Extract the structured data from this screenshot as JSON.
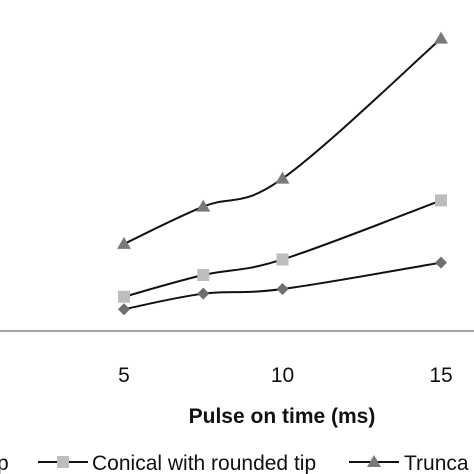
{
  "chart_data": {
    "type": "line",
    "x": [
      5,
      7.5,
      10,
      15
    ],
    "xticks": [
      "5",
      "10",
      "15"
    ],
    "xtick_values": [
      5,
      10,
      15
    ],
    "xlabel": "Pulse on time (ms)",
    "xlim": [
      2.5,
      15.5
    ],
    "ylim": [
      0,
      10
    ],
    "series": [
      {
        "name": "...p",
        "marker": "diamond",
        "color": "#6e6e6e",
        "values": [
          0.7,
          1.2,
          1.35,
          2.2
        ]
      },
      {
        "name": "Conical with rounded tip",
        "marker": "square",
        "color": "#bdbdbd",
        "values": [
          1.1,
          1.8,
          2.3,
          4.2
        ]
      },
      {
        "name": "Trunca...",
        "marker": "triangle",
        "color": "#7a7a7a",
        "values": [
          2.8,
          4.0,
          4.9,
          9.4
        ]
      }
    ],
    "legend_position": "bottom"
  }
}
